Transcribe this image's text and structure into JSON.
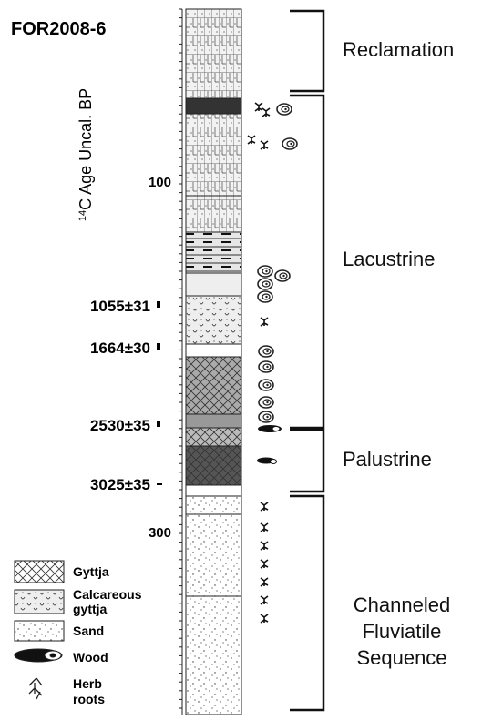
{
  "header": {
    "title": "FOR2008-6"
  },
  "axis": {
    "label_superscript": "14",
    "label": "C Age Uncal. BP",
    "depth_labels": [
      "100",
      "300"
    ]
  },
  "ages": [
    "1055±31",
    "1664±30",
    "2530±35",
    "3025±35"
  ],
  "zones": [
    "Reclamation",
    "Lacustrine",
    "Palustrine",
    [
      "Channeled",
      "Fluviatile",
      "Sequence"
    ]
  ],
  "legend": [
    [
      "Gyttja"
    ],
    [
      "Calcareous",
      "gyttja"
    ],
    [
      "Sand"
    ],
    [
      "Wood"
    ],
    [
      "Herb",
      "roots"
    ]
  ]
}
